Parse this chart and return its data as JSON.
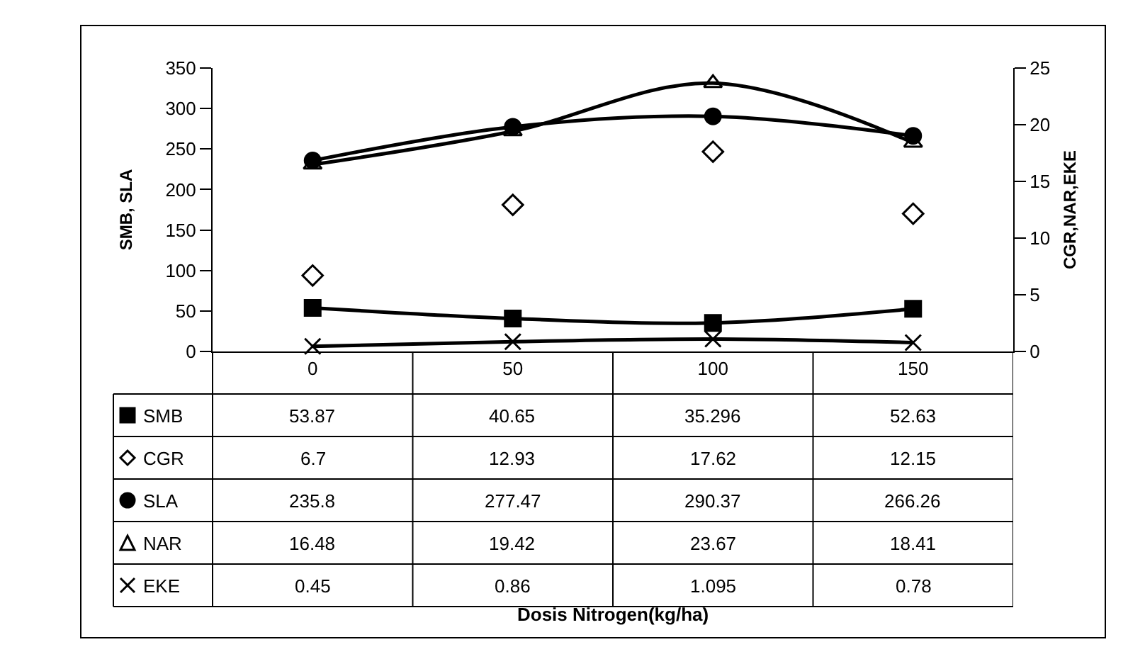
{
  "chart_data": {
    "type": "line",
    "annotations": [
      "Dosis Nitrogen(kg/ha)"
    ],
    "ylabel": "SMB, SLA",
    "y2label": "CGR,NAR,EKE",
    "categories": [
      "0",
      "50",
      "100",
      "150"
    ],
    "series": [
      {
        "name": "SMB",
        "color": "#000000",
        "marker": "square",
        "values": [
          53.87,
          40.65,
          35.296,
          52.63
        ]
      },
      {
        "name": "CGR",
        "color": "#000000",
        "marker": "diamond",
        "type": "scatter",
        "axis": "y2",
        "values": [
          6.7,
          12.93,
          17.62,
          12.15
        ]
      },
      {
        "name": "SLA",
        "color": "#000000",
        "marker": "circle",
        "values": [
          235.8,
          277.47,
          290.37,
          266.26
        ]
      },
      {
        "name": "NAR",
        "color": "#000000",
        "marker": "triangle",
        "axis": "y2",
        "values": [
          16.48,
          19.42,
          23.67,
          18.41
        ]
      },
      {
        "name": "EKE",
        "color": "#000000",
        "marker": "cross",
        "axis": "y2",
        "values": [
          0.45,
          0.86,
          1.095,
          0.78
        ]
      }
    ],
    "ylim": [
      0,
      350
    ],
    "yticks": [
      0,
      50,
      100,
      150,
      200,
      250,
      300,
      350
    ],
    "y2lim": [
      0,
      25
    ],
    "y2ticks": [
      0,
      5,
      10,
      15,
      20,
      25
    ],
    "data_labels": true,
    "legend": "bottom left"
  }
}
